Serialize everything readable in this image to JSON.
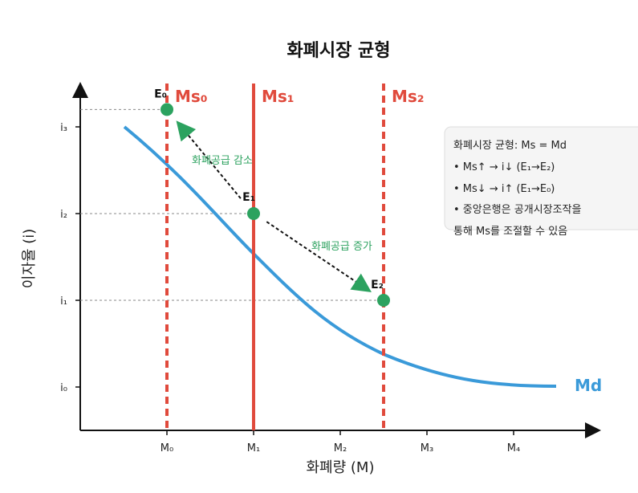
{
  "title": "화폐시장 균형",
  "axes": {
    "xlabel": "화폐량 (M)",
    "ylabel": "이자율 (i)",
    "xticks": [
      "M₀",
      "M₁",
      "M₂",
      "M₃",
      "M₄"
    ],
    "yticks": [
      "i₀",
      "i₁",
      "i₂",
      "i₃"
    ]
  },
  "supply_curves": [
    {
      "label": "Ms₀",
      "at_tick": 0,
      "style": "dashed"
    },
    {
      "label": "Ms₁",
      "at_tick": 1,
      "style": "solid"
    },
    {
      "label": "Ms₂",
      "at_tick": 2.5,
      "style": "dashed"
    }
  ],
  "demand_curve": {
    "label": "Md"
  },
  "points": [
    {
      "label": "E₀",
      "x": 0,
      "y": 3.2
    },
    {
      "label": "E₁",
      "x": 1,
      "y": 2
    },
    {
      "label": "E₂",
      "x": 2.5,
      "y": 1
    }
  ],
  "arrows": [
    {
      "label": "화폐공급 감소",
      "from": "E₁",
      "to": "E₀"
    },
    {
      "label": "화폐공급 증가",
      "from": "E₁",
      "to": "E₂"
    }
  ],
  "info_box": {
    "lines": [
      "화폐시장 균형: Ms = Md",
      "• Ms↑ → i↓ (E₁→E₂)",
      "• Ms↓ → i↑ (E₁→E₀)",
      "• 중앙은행은 공개시장조작을",
      "통해 Ms를 조절할 수 있음"
    ]
  },
  "colors": {
    "supply": "#e04a3c",
    "demand": "#3a9ad9",
    "point": "#2ca25f",
    "arrow_label": "#2ca25f",
    "axis": "#111111",
    "guide": "#888888",
    "box_bg": "#f5f5f5",
    "box_border": "#dddddd"
  }
}
